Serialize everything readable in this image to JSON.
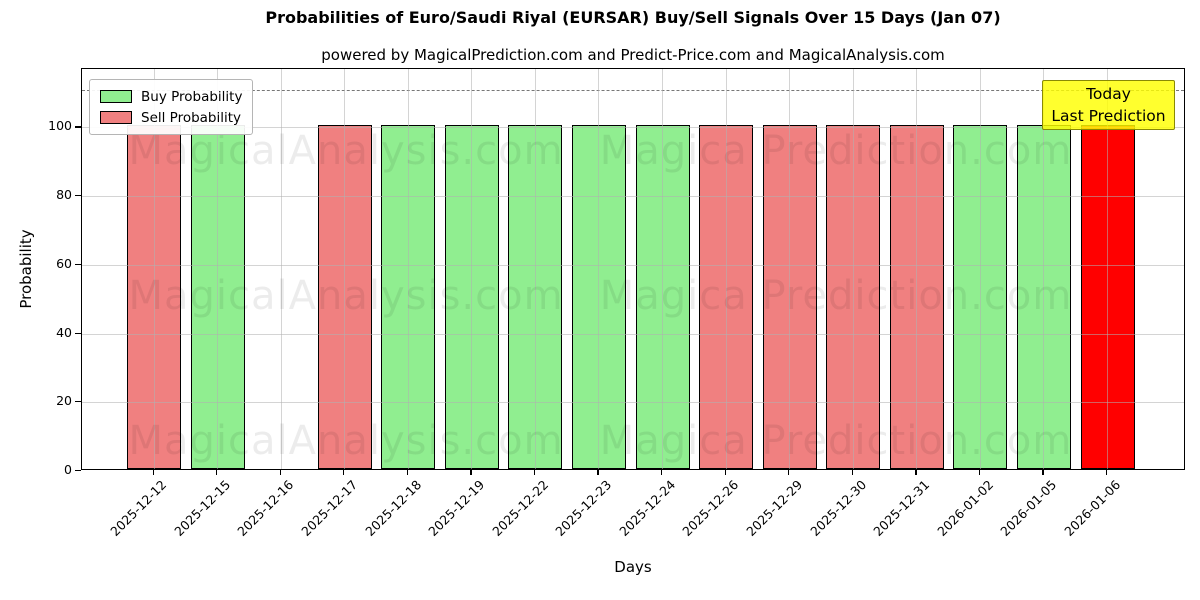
{
  "title": "Probabilities of Euro/Saudi Riyal (EURSAR) Buy/Sell Signals Over 15 Days (Jan 07)",
  "subtitle": "powered by MagicalPrediction.com and Predict-Price.com and MagicalAnalysis.com",
  "axes": {
    "x_label": "Days",
    "y_label": "Probability",
    "y_ticks": [
      0,
      20,
      40,
      60,
      80,
      100
    ]
  },
  "legend": {
    "items": [
      {
        "label": "Buy Probability",
        "color": "#90EE90"
      },
      {
        "label": "Sell Probability",
        "color": "#F08080"
      }
    ]
  },
  "annotation": {
    "line1": "Today",
    "line2": "Last Prediction"
  },
  "watermarks": {
    "left": "MagicalAnalysis.com",
    "right": "Magica Prediction.com"
  },
  "colors": {
    "buy": "#90EE90",
    "sell": "#F08080",
    "today": "#FF0000",
    "annotation_bg": "#FFFF00",
    "grid": "#b0b0b0",
    "dashed_line": "#777777",
    "bar_edge": "#000000"
  },
  "chart_data": {
    "type": "bar",
    "title": "Probabilities of Euro/Saudi Riyal (EURSAR) Buy/Sell Signals Over 15 Days (Jan 07)",
    "xlabel": "Days",
    "ylabel": "Probability",
    "ylim": [
      0,
      117
    ],
    "dashed_line_y": 111,
    "grid": true,
    "legend_position": "upper left",
    "categories": [
      "2025-12-12",
      "2025-12-15",
      "2025-12-16",
      "2025-12-17",
      "2025-12-18",
      "2025-12-19",
      "2025-12-22",
      "2025-12-23",
      "2025-12-24",
      "2025-12-26",
      "2025-12-29",
      "2025-12-30",
      "2025-12-31",
      "2026-01-02",
      "2026-01-05",
      "2026-01-06"
    ],
    "series": [
      {
        "name": "Buy Probability",
        "values": [
          null,
          100,
          null,
          null,
          100,
          100,
          100,
          100,
          100,
          null,
          null,
          null,
          null,
          100,
          100,
          null
        ]
      },
      {
        "name": "Sell Probability",
        "values": [
          100,
          null,
          null,
          100,
          null,
          null,
          null,
          null,
          null,
          100,
          100,
          100,
          100,
          null,
          null,
          null
        ]
      },
      {
        "name": "Today / Last Prediction",
        "values": [
          null,
          null,
          null,
          null,
          null,
          null,
          null,
          null,
          null,
          null,
          null,
          null,
          null,
          null,
          null,
          100
        ]
      }
    ],
    "bars": [
      {
        "date": "2025-12-12",
        "kind": "sell",
        "value": 100
      },
      {
        "date": "2025-12-15",
        "kind": "buy",
        "value": 100
      },
      {
        "date": "2025-12-16",
        "kind": "none",
        "value": 0
      },
      {
        "date": "2025-12-17",
        "kind": "sell",
        "value": 100
      },
      {
        "date": "2025-12-18",
        "kind": "buy",
        "value": 100
      },
      {
        "date": "2025-12-19",
        "kind": "buy",
        "value": 100
      },
      {
        "date": "2025-12-22",
        "kind": "buy",
        "value": 100
      },
      {
        "date": "2025-12-23",
        "kind": "buy",
        "value": 100
      },
      {
        "date": "2025-12-24",
        "kind": "buy",
        "value": 100
      },
      {
        "date": "2025-12-26",
        "kind": "sell",
        "value": 100
      },
      {
        "date": "2025-12-29",
        "kind": "sell",
        "value": 100
      },
      {
        "date": "2025-12-30",
        "kind": "sell",
        "value": 100
      },
      {
        "date": "2025-12-31",
        "kind": "sell",
        "value": 100
      },
      {
        "date": "2026-01-02",
        "kind": "buy",
        "value": 100
      },
      {
        "date": "2026-01-05",
        "kind": "buy",
        "value": 100
      },
      {
        "date": "2026-01-06",
        "kind": "today",
        "value": 100
      }
    ]
  }
}
